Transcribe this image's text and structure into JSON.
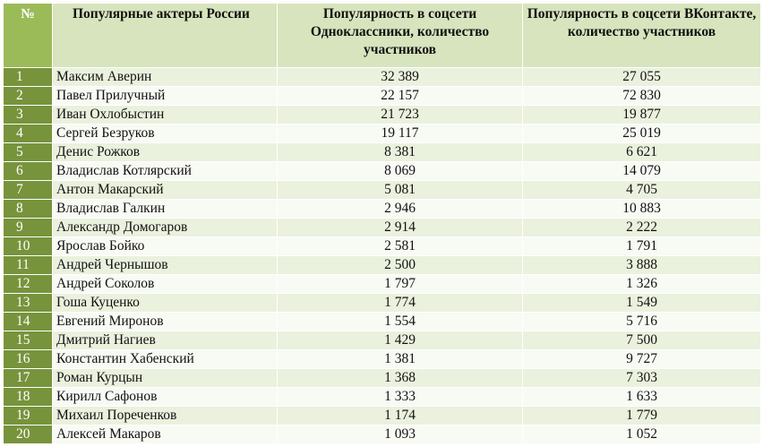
{
  "headers": {
    "num": "№",
    "actor": "Популярные актеры России",
    "ok": "Популярность в соцсети Одноклассники, количество участников",
    "vk": "Популярность в соцсети ВКонтакте, количество участников"
  },
  "rows": [
    {
      "num": "1",
      "name": "Максим Аверин",
      "ok": "32 389",
      "vk": "27 055"
    },
    {
      "num": "2",
      "name": "Павел Прилучный",
      "ok": "22 157",
      "vk": "72 830"
    },
    {
      "num": "3",
      "name": "Иван Охлобыстин",
      "ok": "21 723",
      "vk": "19 877"
    },
    {
      "num": "4",
      "name": "Сергей Безруков",
      "ok": "19 117",
      "vk": "25 019"
    },
    {
      "num": "5",
      "name": "Денис Рожков",
      "ok": "8 381",
      "vk": "6 621"
    },
    {
      "num": "6",
      "name": "Владислав Котлярский",
      "ok": "8 069",
      "vk": "14 079"
    },
    {
      "num": "7",
      "name": "Антон Макарский",
      "ok": "5 081",
      "vk": "4 705"
    },
    {
      "num": "8",
      "name": "Владислав Галкин",
      "ok": "2 946",
      "vk": "10 883"
    },
    {
      "num": "9",
      "name": "Александр Домогаров",
      "ok": "2 914",
      "vk": "2 222"
    },
    {
      "num": "10",
      "name": "Ярослав Бойко",
      "ok": "2 581",
      "vk": "1 791"
    },
    {
      "num": "11",
      "name": "Андрей Чернышов",
      "ok": "2 500",
      "vk": "3 888"
    },
    {
      "num": "12",
      "name": "Андрей Соколов",
      "ok": "1 797",
      "vk": "1 326"
    },
    {
      "num": "13",
      "name": "Гоша Куценко",
      "ok": "1 774",
      "vk": "1 549"
    },
    {
      "num": "14",
      "name": "Евгений Миронов",
      "ok": "1 554",
      "vk": "5 716"
    },
    {
      "num": "15",
      "name": "Дмитрий Нагиев",
      "ok": "1 429",
      "vk": "7 500"
    },
    {
      "num": "16",
      "name": "Константин Хабенский",
      "ok": "1 381",
      "vk": "9 727"
    },
    {
      "num": "17",
      "name": "Роман Курцын",
      "ok": "1 368",
      "vk": "7 303"
    },
    {
      "num": "18",
      "name": "Кирилл Сафонов",
      "ok": "1 333",
      "vk": "1 633"
    },
    {
      "num": "19",
      "name": "Михаил Пореченков",
      "ok": "1 174",
      "vk": "1 779"
    },
    {
      "num": "20",
      "name": "Алексей Макаров",
      "ok": "1 093",
      "vk": "1 052"
    }
  ],
  "colors": {
    "number_cell": "#77933c",
    "header": "#d7e4bd",
    "row_odd": "#eaf1dd",
    "row_even": "#f8faf4"
  }
}
